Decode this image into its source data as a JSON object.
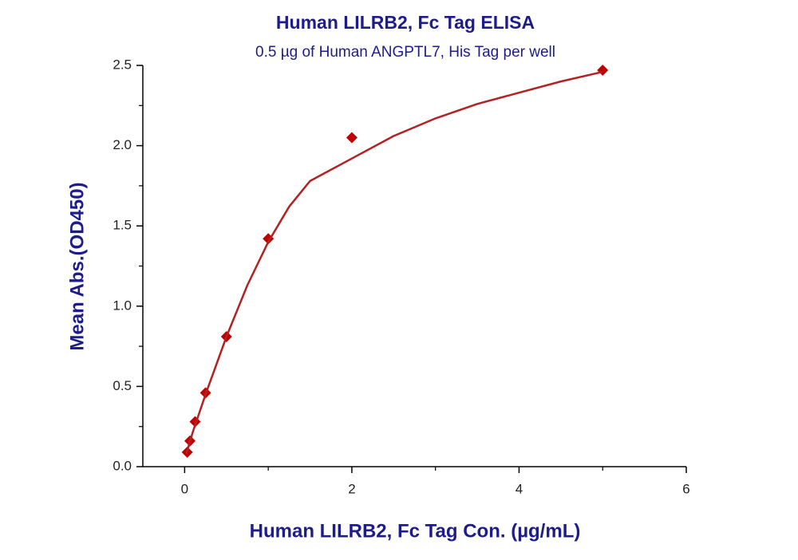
{
  "chart_data": {
    "type": "scatter",
    "title": "Human LILRB2, Fc Tag ELISA",
    "subtitle": "0.5 µg of Human ANGPTL7, His Tag per well",
    "x_label": "Human LILRB2, Fc Tag Con. (µg/mL)",
    "y_label": "Mean Abs.(OD450)",
    "xlim": [
      -0.5,
      6
    ],
    "ylim": [
      0,
      2.5
    ],
    "xticks": [
      0,
      2,
      4,
      6
    ],
    "yticks": [
      {
        "value": 0,
        "label": "0.0"
      },
      0.5,
      {
        "value": 1,
        "label": "1.0"
      },
      1.5,
      {
        "value": 2,
        "label": "2.0"
      },
      2.5
    ],
    "minor_ticks": true,
    "series": [
      {
        "color": "#c00000",
        "marker": "diamond",
        "x": [
          0.031,
          0.063,
          0.125,
          0.25,
          0.5,
          1,
          2,
          5
        ],
        "values": [
          0.09,
          0.16,
          0.28,
          0.46,
          0.81,
          1.42,
          2.05,
          2.47
        ]
      },
      {
        "color": "#b22222",
        "marker": "line",
        "x": [
          0.02,
          0.1,
          0.25,
          0.5,
          0.75,
          1,
          1.25,
          1.5,
          2,
          2.5,
          3,
          3.5,
          4,
          4.5,
          5
        ],
        "values": [
          0.08,
          0.22,
          0.45,
          0.81,
          1.13,
          1.4,
          1.62,
          1.78,
          1.92,
          2.06,
          2.17,
          2.26,
          2.33,
          2.4,
          2.46
        ]
      }
    ]
  }
}
